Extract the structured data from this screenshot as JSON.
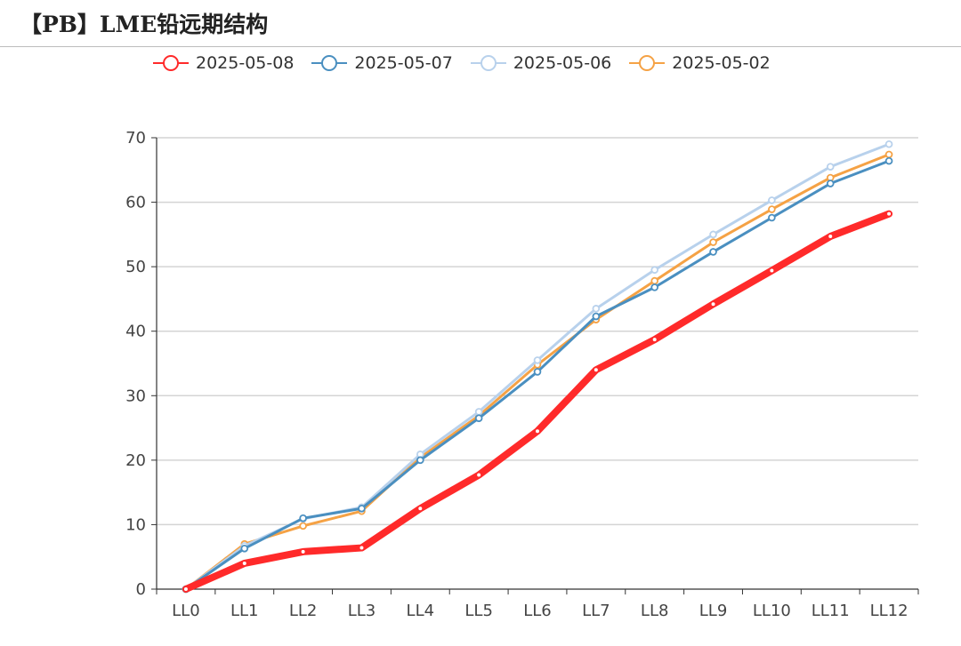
{
  "title": "【PB】LME铅远期结构",
  "chart_data": {
    "type": "line",
    "categories": [
      "LL0",
      "LL1",
      "LL2",
      "LL3",
      "LL4",
      "LL5",
      "LL6",
      "LL7",
      "LL8",
      "LL9",
      "LL10",
      "LL11",
      "LL12"
    ],
    "ylim": [
      0,
      70
    ],
    "yticks": [
      0,
      10,
      20,
      30,
      40,
      50,
      60,
      70
    ],
    "grid": true,
    "legend_position": "top",
    "series": [
      {
        "name": "2025-05-08",
        "color": "#ff2a2a",
        "emphasis": true,
        "values": [
          0,
          4.0,
          5.8,
          6.4,
          12.5,
          17.7,
          24.5,
          34.0,
          38.7,
          44.2,
          49.4,
          54.7,
          58.2
        ]
      },
      {
        "name": "2025-05-07",
        "color": "#4a8fc0",
        "values": [
          0,
          6.3,
          11.0,
          12.5,
          20.0,
          26.5,
          33.7,
          42.3,
          46.8,
          52.3,
          57.6,
          62.9,
          66.4
        ]
      },
      {
        "name": "2025-05-06",
        "color": "#b8d1ec",
        "values": [
          0,
          6.7,
          10.9,
          12.7,
          20.9,
          27.5,
          35.5,
          43.5,
          49.5,
          55.0,
          60.3,
          65.5,
          69.0
        ]
      },
      {
        "name": "2025-05-02",
        "color": "#f5a245",
        "values": [
          0,
          7.0,
          9.8,
          12.1,
          20.4,
          26.9,
          34.8,
          41.8,
          47.8,
          53.8,
          58.9,
          63.8,
          67.4
        ]
      }
    ]
  }
}
